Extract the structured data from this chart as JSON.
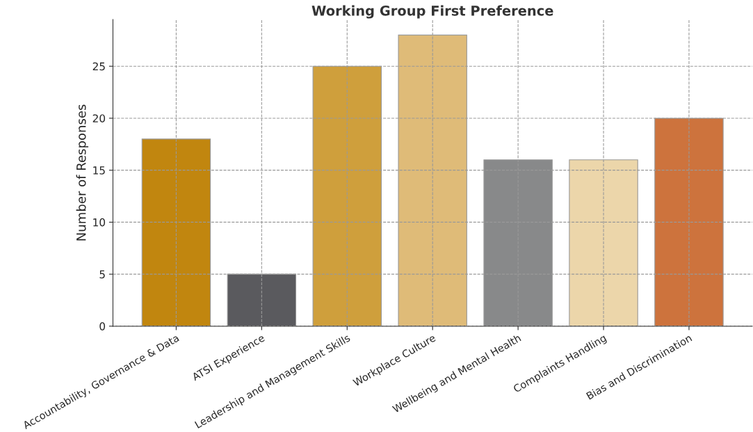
{
  "chart_data": {
    "type": "bar",
    "title": "Working Group First Preference",
    "ylabel": "Number of Responses",
    "categories": [
      "Accountability, Governance & Data",
      "ATSI Experience",
      "Leadership and Management Skills",
      "Workplace Culture",
      "Wellbeing and Mental Health",
      "Complaints Handling",
      "Bias and Discrimination"
    ],
    "values": [
      18,
      5,
      25,
      28,
      16,
      16,
      20
    ],
    "colors": [
      "#c1860f",
      "#5a5a5e",
      "#cf9f3c",
      "#dfbb78",
      "#88898a",
      "#ecd6aa",
      "#cd733d"
    ],
    "ylim": [
      0,
      29.5
    ],
    "yticks": [
      0,
      5,
      10,
      15,
      20,
      25
    ],
    "grid": true
  }
}
